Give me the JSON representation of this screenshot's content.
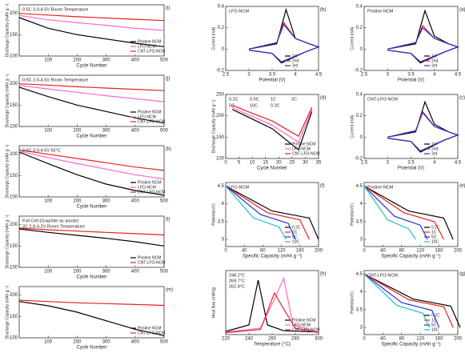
{
  "chart_data": [
    {
      "type": "line",
      "panel": "(i)",
      "xlabel": "Cycle Number",
      "ylabel": "Discharge Capacity (mAh g⁻¹)",
      "annotations": [
        "0.5C  3.0-4.5V  Room Temperature"
      ],
      "x": [
        0,
        100,
        200,
        300,
        400,
        500
      ],
      "xlim": [
        0,
        500
      ],
      "xticks": [
        100,
        200,
        300,
        400,
        500
      ],
      "ylim": [
        100,
        220
      ],
      "yticks": [
        100,
        150,
        200
      ],
      "series": [
        {
          "name": "Pristine NCM",
          "color": "#000000",
          "values": [
            190,
            165,
            150,
            140,
            130,
            122
          ]
        },
        {
          "name": "LFO-NCM",
          "color": "#ff66cc",
          "values": [
            195,
            185,
            178,
            172,
            165,
            160
          ]
        },
        {
          "name": "CNT-LFO-NCM",
          "color": "#e8211c",
          "values": [
            200,
            196,
            192,
            189,
            186,
            183
          ]
        }
      ]
    },
    {
      "type": "line",
      "panel": "(j)",
      "xlabel": "Cycle Number",
      "ylabel": "Discharge Capacity (mAh g⁻¹)",
      "annotations": [
        "0.5C  3.0-4.5V  Room Temperature"
      ],
      "x": [
        0,
        100,
        200,
        300,
        400,
        500
      ],
      "xlim": [
        0,
        500
      ],
      "xticks": [
        100,
        200,
        300,
        400,
        500
      ],
      "ylim": [
        100,
        220
      ],
      "yticks": [
        100,
        150,
        200
      ],
      "series": [
        {
          "name": "Pristine NCM",
          "color": "#000000",
          "values": [
            192,
            170,
            150,
            135,
            120,
            108
          ]
        },
        {
          "name": "LFO-NCM",
          "color": "#ff66cc",
          "values": [
            196,
            188,
            180,
            172,
            165,
            158
          ]
        },
        {
          "name": "CNT-LFO-NCM",
          "color": "#e8211c",
          "values": [
            200,
            197,
            193,
            190,
            187,
            184
          ]
        }
      ]
    },
    {
      "type": "line",
      "panel": "(k)",
      "xlabel": "Cycle Number",
      "ylabel": "Discharge Capacity (mAh g⁻¹)",
      "annotations": [
        "0.5C  3.0-4.5V  55°C"
      ],
      "x": [
        0,
        100,
        200,
        300,
        400,
        500
      ],
      "xlim": [
        0,
        500
      ],
      "xticks": [
        100,
        200,
        300,
        400,
        500
      ],
      "ylim": [
        100,
        220
      ],
      "yticks": [
        100,
        150,
        200
      ],
      "series": [
        {
          "name": "Pristine NCM",
          "color": "#000000",
          "values": [
            205,
            178,
            152,
            130,
            115,
            104
          ]
        },
        {
          "name": "LFO-NCM",
          "color": "#ff66cc",
          "values": [
            207,
            192,
            178,
            165,
            152,
            142
          ]
        },
        {
          "name": "CNT-LFO-NCM",
          "color": "#e8211c",
          "values": [
            210,
            200,
            190,
            180,
            170,
            162
          ]
        }
      ]
    },
    {
      "type": "line",
      "panel": "(l)",
      "xlabel": "Cycle Number",
      "ylabel": "Discharge Capacity (mAh g⁻¹)",
      "annotations": [
        "Full Cell (Graphite as anode)",
        "2C  2.8-4.2V  Room Temperature"
      ],
      "x": [
        0,
        100,
        200,
        300,
        400,
        500
      ],
      "xlim": [
        0,
        500
      ],
      "xticks": [
        100,
        200,
        300,
        400,
        500
      ],
      "ylim": [
        100,
        220
      ],
      "yticks": [
        100,
        150,
        200
      ],
      "series": [
        {
          "name": "Pristine NCM",
          "color": "#000000",
          "values": [
            190,
            182,
            175,
            168,
            160,
            150
          ]
        },
        {
          "name": "CNT-LFO-NCM",
          "color": "#e8211c",
          "values": [
            192,
            188,
            185,
            182,
            179,
            176
          ]
        }
      ]
    },
    {
      "type": "line",
      "panel": "(m)",
      "xlabel": "Cycle Number",
      "ylabel": "Discharge Capacity (mAh g⁻¹)",
      "annotations": [],
      "x": [
        0,
        100,
        200,
        300,
        400,
        500
      ],
      "xlim": [
        0,
        500
      ],
      "xticks": [
        100,
        200,
        300,
        400,
        500
      ],
      "ylim": [
        100,
        220
      ],
      "yticks": [
        100,
        150,
        200
      ],
      "series": [
        {
          "name": "Pristine NCM",
          "color": "#000000",
          "values": [
            185,
            175,
            160,
            140,
            120,
            105
          ]
        },
        {
          "name": "CNT-LFO-NCM",
          "color": "#e8211c",
          "values": [
            188,
            185,
            182,
            180,
            178,
            176
          ]
        }
      ]
    },
    {
      "type": "line",
      "panel": "(b)",
      "xlabel": "Potential (V)",
      "ylabel": "Current (mA)",
      "annotations": [
        "LFO-NCM"
      ],
      "xlim": [
        2.5,
        4.5
      ],
      "xticks": [
        2.5,
        3.0,
        3.5,
        4.0,
        4.5
      ],
      "ylim": [
        -0.2,
        0.4
      ],
      "yticks": [
        -0.2,
        0.0,
        0.2,
        0.4
      ],
      "series": [
        {
          "name": "1st",
          "color": "#000000",
          "x": [
            3.0,
            3.6,
            3.8,
            4.0,
            4.3,
            4.5,
            4.2,
            3.7,
            3.5,
            3.0
          ],
          "values": [
            0.0,
            0.05,
            0.37,
            0.1,
            0.05,
            0.02,
            -0.03,
            -0.13,
            -0.04,
            -0.01
          ]
        },
        {
          "name": "2nd",
          "color": "#e8211c",
          "x": [
            3.0,
            3.6,
            3.75,
            4.0,
            4.3,
            4.5,
            4.2,
            3.7,
            3.5,
            3.0
          ],
          "values": [
            0.0,
            0.06,
            0.25,
            0.1,
            0.05,
            0.02,
            -0.03,
            -0.12,
            -0.04,
            -0.01
          ]
        },
        {
          "name": "3rd",
          "color": "#2233cc",
          "x": [
            3.0,
            3.6,
            3.75,
            4.0,
            4.3,
            4.5,
            4.2,
            3.7,
            3.5,
            3.0
          ],
          "values": [
            0.0,
            0.06,
            0.23,
            0.1,
            0.05,
            0.02,
            -0.03,
            -0.12,
            -0.04,
            -0.01
          ]
        }
      ]
    },
    {
      "type": "line",
      "panel": "(d)",
      "xlabel": "Cycle Number",
      "ylabel": "Discharge Capacity (mAh g⁻¹)",
      "annotations": [
        "0.2C",
        "0.5C",
        "1C",
        "2C",
        "5C",
        "10C",
        "0.2C"
      ],
      "x": [
        2.5,
        7.5,
        12.5,
        17.5,
        22.5,
        27.5,
        32.5
      ],
      "xlim": [
        0,
        35
      ],
      "xticks": [
        0,
        5,
        10,
        15,
        20,
        25,
        30,
        35
      ],
      "ylim": [
        100,
        250
      ],
      "yticks": [
        100,
        150,
        200,
        250
      ],
      "series": [
        {
          "name": "Pristine NCM",
          "color": "#000000",
          "values": [
            215,
            200,
            185,
            170,
            145,
            120,
            210
          ]
        },
        {
          "name": "LFO-NCM",
          "color": "#ff66cc",
          "values": [
            220,
            205,
            192,
            178,
            158,
            138,
            215
          ]
        },
        {
          "name": "CNT-LFO-NCM",
          "color": "#e8211c",
          "values": [
            225,
            212,
            200,
            188,
            170,
            152,
            220
          ]
        }
      ]
    },
    {
      "type": "line",
      "panel": "(f)",
      "xlabel": "Specific Capacity (mAh g⁻¹)",
      "ylabel": "Potential (V)",
      "annotations": [
        "LFO-NCM"
      ],
      "xlim": [
        0,
        200
      ],
      "xticks": [
        0,
        40,
        80,
        120,
        160,
        200
      ],
      "ylim": [
        2.8,
        4.6
      ],
      "yticks": [
        3.0,
        3.5,
        4.0,
        4.5
      ],
      "series": [
        {
          "name": "0.2C",
          "color": "#000000",
          "x": [
            0,
            100,
            180,
            200
          ],
          "values": [
            4.5,
            3.8,
            3.6,
            3.0
          ]
        },
        {
          "name": "1C",
          "color": "#e8211c",
          "x": [
            0,
            90,
            160,
            180
          ],
          "values": [
            4.5,
            3.75,
            3.55,
            3.0
          ]
        },
        {
          "name": "5C",
          "color": "#2233cc",
          "x": [
            0,
            75,
            135,
            150
          ],
          "values": [
            4.5,
            3.7,
            3.45,
            3.0
          ]
        },
        {
          "name": "10C",
          "color": "#22bbcc",
          "x": [
            0,
            60,
            115,
            130
          ],
          "values": [
            4.5,
            3.6,
            3.35,
            3.0
          ]
        }
      ]
    },
    {
      "type": "line",
      "panel": "(h)",
      "xlabel": "Temperature (°C)",
      "ylabel": "Heat flow (mW/g)",
      "annotations": [
        "248.2°C",
        "269.7°C",
        "262.4°C"
      ],
      "xlim": [
        220,
        300
      ],
      "xticks": [
        220,
        240,
        260,
        280,
        300
      ],
      "ylim": [
        0,
        10
      ],
      "yticks": [],
      "series": [
        {
          "name": "Pristine NCM",
          "color": "#000000",
          "x": [
            220,
            240,
            248,
            256,
            270,
            300
          ],
          "values": [
            0.5,
            1.5,
            8.5,
            1.5,
            0.6,
            0.4
          ]
        },
        {
          "name": "LFO-NCM",
          "color": "#ff66cc",
          "x": [
            220,
            250,
            262,
            270,
            278,
            300
          ],
          "values": [
            0.4,
            1.0,
            5.5,
            8.8,
            1.5,
            0.4
          ]
        },
        {
          "name": "CNT-LFO-NCM",
          "color": "#e8211c",
          "x": [
            220,
            250,
            262,
            270,
            280,
            300
          ],
          "values": [
            0.3,
            0.8,
            6.5,
            4.0,
            1.0,
            0.3
          ]
        }
      ]
    },
    {
      "type": "line",
      "panel": "(a)",
      "xlabel": "Potential (V)",
      "ylabel": "Current (mA)",
      "annotations": [
        "Pristine NCM"
      ],
      "xlim": [
        2.5,
        4.5
      ],
      "xticks": [
        2.5,
        3.0,
        3.5,
        4.0,
        4.5
      ],
      "ylim": [
        -0.2,
        0.4
      ],
      "yticks": [
        -0.2,
        0.0,
        0.2,
        0.4
      ],
      "series": [
        {
          "name": "1st",
          "color": "#000000",
          "x": [
            3.0,
            3.6,
            3.8,
            4.0,
            4.3,
            4.5,
            4.2,
            3.7,
            3.5,
            3.0
          ],
          "values": [
            0.0,
            0.05,
            0.36,
            0.12,
            0.05,
            0.02,
            -0.03,
            -0.13,
            -0.04,
            -0.01
          ]
        },
        {
          "name": "2nd",
          "color": "#e8211c",
          "x": [
            3.0,
            3.6,
            3.75,
            4.0,
            4.3,
            4.5,
            4.2,
            3.7,
            3.5,
            3.0
          ],
          "values": [
            0.0,
            0.06,
            0.22,
            0.1,
            0.05,
            0.02,
            -0.03,
            -0.12,
            -0.04,
            -0.01
          ]
        },
        {
          "name": "3rd",
          "color": "#2233cc",
          "x": [
            3.0,
            3.6,
            3.75,
            4.0,
            4.3,
            4.5,
            4.2,
            3.7,
            3.5,
            3.0
          ],
          "values": [
            0.0,
            0.06,
            0.2,
            0.1,
            0.05,
            0.02,
            -0.03,
            -0.12,
            -0.04,
            -0.01
          ]
        }
      ]
    },
    {
      "type": "line",
      "panel": "(c)",
      "xlabel": "Potential (V)",
      "ylabel": "Current (mA)",
      "annotations": [
        "CNT-LFO-NCM"
      ],
      "xlim": [
        2.5,
        4.5
      ],
      "xticks": [
        2.5,
        3.0,
        3.5,
        4.0,
        4.5
      ],
      "ylim": [
        -0.2,
        0.4
      ],
      "yticks": [
        -0.2,
        0.0,
        0.2,
        0.4
      ],
      "series": [
        {
          "name": "1st",
          "color": "#000000",
          "x": [
            3.0,
            3.6,
            3.8,
            4.0,
            4.3,
            4.5,
            4.2,
            3.7,
            3.5,
            3.0
          ],
          "values": [
            0.0,
            0.05,
            0.33,
            0.12,
            0.05,
            0.02,
            -0.03,
            -0.14,
            -0.04,
            -0.01
          ]
        },
        {
          "name": "2nd",
          "color": "#e8211c",
          "x": [
            3.0,
            3.6,
            3.75,
            4.0,
            4.3,
            4.5,
            4.2,
            3.7,
            3.5,
            3.0
          ],
          "values": [
            0.0,
            0.06,
            0.24,
            0.1,
            0.05,
            0.02,
            -0.03,
            -0.13,
            -0.04,
            -0.01
          ]
        },
        {
          "name": "3rd",
          "color": "#2233cc",
          "x": [
            3.0,
            3.6,
            3.75,
            4.0,
            4.3,
            4.5,
            4.2,
            3.7,
            3.5,
            3.0
          ],
          "values": [
            0.0,
            0.06,
            0.23,
            0.1,
            0.05,
            0.02,
            -0.03,
            -0.13,
            -0.04,
            -0.01
          ]
        }
      ]
    },
    {
      "type": "line",
      "panel": "(e)",
      "xlabel": "Specific Capacity (mAh g⁻¹)",
      "ylabel": "Potential (V)",
      "annotations": [
        "Pristine NCM"
      ],
      "xlim": [
        0,
        200
      ],
      "xticks": [
        0,
        40,
        80,
        120,
        160,
        200
      ],
      "ylim": [
        2.8,
        4.6
      ],
      "yticks": [
        3.0,
        3.5,
        4.0,
        4.5
      ],
      "series": [
        {
          "name": "0.2C",
          "color": "#000000",
          "x": [
            0,
            95,
            170,
            190
          ],
          "values": [
            4.5,
            3.8,
            3.6,
            3.0
          ]
        },
        {
          "name": "1C",
          "color": "#e8211c",
          "x": [
            0,
            85,
            150,
            170
          ],
          "values": [
            4.5,
            3.75,
            3.5,
            3.0
          ]
        },
        {
          "name": "5C",
          "color": "#2233cc",
          "x": [
            0,
            65,
            120,
            135
          ],
          "values": [
            4.5,
            3.65,
            3.4,
            3.0
          ]
        },
        {
          "name": "10C",
          "color": "#22bbcc",
          "x": [
            0,
            50,
            95,
            110
          ],
          "values": [
            4.5,
            3.55,
            3.3,
            3.0
          ]
        }
      ]
    },
    {
      "type": "line",
      "panel": "(g)",
      "xlabel": "Specific Capacity (mAh g⁻¹)",
      "ylabel": "Potential (V)",
      "annotations": [
        "CNT-LFO-NCM"
      ],
      "xlim": [
        0,
        200
      ],
      "xticks": [
        0,
        40,
        80,
        120,
        160,
        200
      ],
      "ylim": [
        2.8,
        4.6
      ],
      "yticks": [
        3.0,
        3.5,
        4.0,
        4.5
      ],
      "series": [
        {
          "name": "0.2C",
          "color": "#000000",
          "x": [
            0,
            105,
            185,
            205
          ],
          "values": [
            4.5,
            3.8,
            3.6,
            3.0
          ]
        },
        {
          "name": "1C",
          "color": "#e8211c",
          "x": [
            0,
            95,
            170,
            190
          ],
          "values": [
            4.5,
            3.78,
            3.58,
            3.0
          ]
        },
        {
          "name": "5C",
          "color": "#2233cc",
          "x": [
            0,
            80,
            145,
            160
          ],
          "values": [
            4.5,
            3.7,
            3.48,
            3.0
          ]
        },
        {
          "name": "10C",
          "color": "#22bbcc",
          "x": [
            0,
            70,
            125,
            140
          ],
          "values": [
            4.5,
            3.62,
            3.4,
            3.0
          ]
        }
      ]
    }
  ]
}
